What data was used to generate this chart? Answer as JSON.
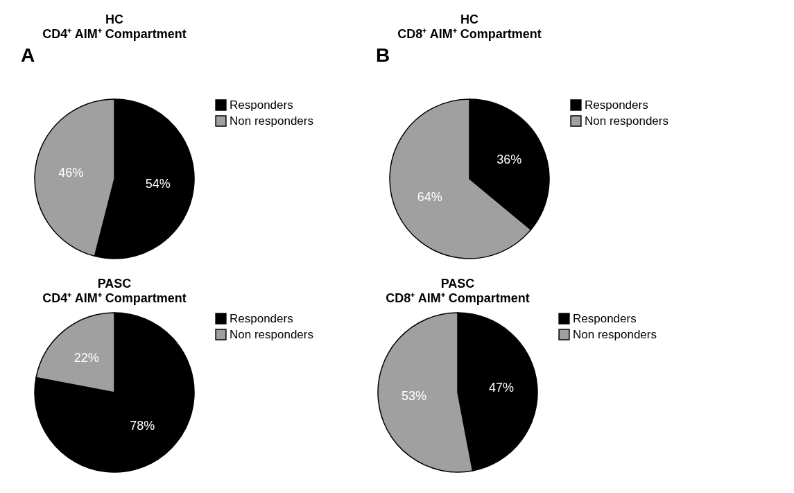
{
  "chart_data": [
    {
      "type": "pie",
      "title": "HC",
      "subtitle": "CD4⁺ AIM⁺ Compartment",
      "annotations": [
        "A"
      ],
      "categories": [
        "Responders",
        "Non responders"
      ],
      "values": [
        54,
        46
      ],
      "colors": [
        "#000000",
        "#a0a0a0"
      ],
      "value_labels": [
        "54%",
        "46%"
      ],
      "legend": "right"
    },
    {
      "type": "pie",
      "title": "HC",
      "subtitle": "CD8⁺ AIM⁺ Compartment",
      "annotations": [
        "B"
      ],
      "categories": [
        "Responders",
        "Non responders"
      ],
      "values": [
        36,
        64
      ],
      "colors": [
        "#000000",
        "#a0a0a0"
      ],
      "value_labels": [
        "36%",
        "64%"
      ],
      "legend": "right"
    },
    {
      "type": "pie",
      "title": "PASC",
      "subtitle": "CD4⁺ AIM⁺ Compartment",
      "categories": [
        "Responders",
        "Non responders"
      ],
      "values": [
        78,
        22
      ],
      "colors": [
        "#000000",
        "#a0a0a0"
      ],
      "value_labels": [
        "78%",
        "22%"
      ],
      "legend": "right"
    },
    {
      "type": "pie",
      "title": "PASC",
      "subtitle": "CD8⁺ AIM⁺ Compartment",
      "categories": [
        "Responders",
        "Non responders"
      ],
      "values": [
        47,
        53
      ],
      "colors": [
        "#000000",
        "#a0a0a0"
      ],
      "value_labels": [
        "47%",
        "53%"
      ],
      "legend": "right"
    }
  ]
}
